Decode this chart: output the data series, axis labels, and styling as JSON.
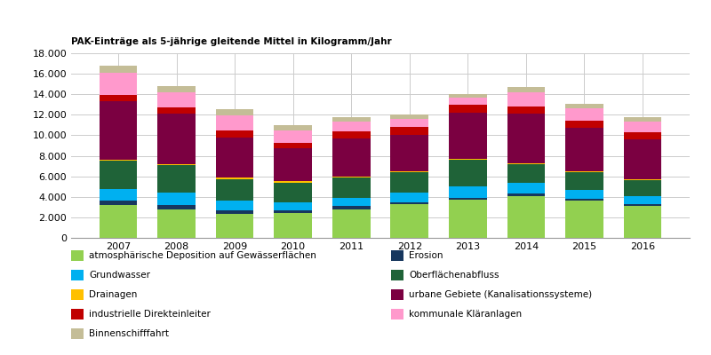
{
  "years": [
    2007,
    2008,
    2009,
    2010,
    2011,
    2012,
    2013,
    2014,
    2015,
    2016
  ],
  "series_order": [
    "atmosphärische Deposition auf Gewässerflächen",
    "Erosion",
    "Grundwasser",
    "Oberflächenabfluss",
    "Drainagen",
    "urbane Gebiete (Kanalisationssysteme)",
    "industrielle Direkteinleiter",
    "kommunale Kläranlagen",
    "Binnenschifffahrt"
  ],
  "series": {
    "atmosphärische Deposition auf Gewässerflächen": {
      "color": "#92d050",
      "values": [
        3200,
        2800,
        2300,
        2400,
        2800,
        3300,
        3700,
        4100,
        3600,
        3100
      ]
    },
    "Erosion": {
      "color": "#17375e",
      "values": [
        400,
        400,
        350,
        300,
        300,
        200,
        200,
        200,
        200,
        200
      ]
    },
    "Grundwasser": {
      "color": "#00b0f0",
      "values": [
        1200,
        1200,
        1000,
        800,
        800,
        900,
        1100,
        1100,
        900,
        800
      ]
    },
    "Oberflächenabfluss": {
      "color": "#1f6338",
      "values": [
        2700,
        2700,
        2100,
        1900,
        2000,
        2000,
        2600,
        1800,
        1700,
        1500
      ]
    },
    "Drainagen": {
      "color": "#ffc000",
      "values": [
        100,
        100,
        100,
        100,
        100,
        100,
        100,
        100,
        100,
        100
      ]
    },
    "urbane Gebiete (Kanalisationssysteme)": {
      "color": "#7b0041",
      "values": [
        5700,
        4900,
        3900,
        3200,
        3700,
        3500,
        4500,
        4800,
        4200,
        3900
      ]
    },
    "industrielle Direkteinleiter": {
      "color": "#c00000",
      "values": [
        600,
        600,
        700,
        600,
        650,
        800,
        800,
        700,
        700,
        700
      ]
    },
    "kommunale Kläranlagen": {
      "color": "#ff99cc",
      "values": [
        2200,
        1500,
        1500,
        1200,
        1000,
        800,
        700,
        1400,
        1200,
        1050
      ]
    },
    "Binnenschifffahrt": {
      "color": "#c4bd97",
      "values": [
        700,
        600,
        600,
        500,
        450,
        400,
        350,
        500,
        500,
        450
      ]
    }
  },
  "legend_layout": [
    [
      "atmosphärische Deposition auf Gewässerflächen",
      "Erosion"
    ],
    [
      "Grundwasser",
      "Oberflächenabfluss"
    ],
    [
      "Drainagen",
      "urbane Gebiete (Kanalisationssysteme)"
    ],
    [
      "industrielle Direkteinleiter",
      "kommunale Kläranlagen"
    ],
    [
      "Binnenschifffahrt",
      ""
    ]
  ],
  "ylabel": "PAK-Einträge als 5-jährige gleitende Mittel in Kilogramm/Jahr",
  "ylim": [
    0,
    18000
  ],
  "yticks": [
    0,
    2000,
    4000,
    6000,
    8000,
    10000,
    12000,
    14000,
    16000,
    18000
  ],
  "grid_color": "#cccccc",
  "bar_width": 0.65
}
